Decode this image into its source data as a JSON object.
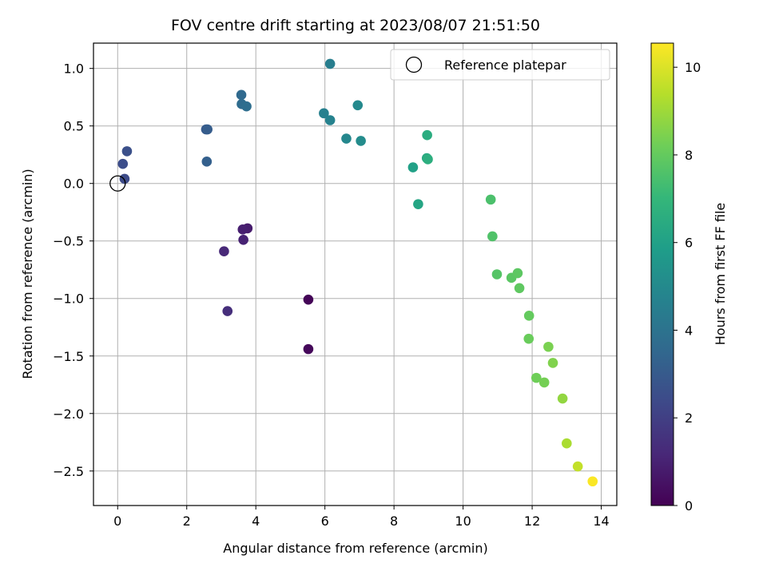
{
  "chart_data": {
    "type": "scatter",
    "title": "FOV centre drift starting at 2023/08/07 21:51:50",
    "xlabel": "Angular distance from reference (arcmin)",
    "ylabel": "Rotation from reference (arcmin)",
    "xlim": [
      -0.7,
      14.45
    ],
    "ylim": [
      -2.8,
      1.22
    ],
    "xticks": [
      0,
      2,
      4,
      6,
      8,
      10,
      12,
      14
    ],
    "xtick_labels": [
      "0",
      "2",
      "4",
      "6",
      "8",
      "10",
      "12",
      "14"
    ],
    "yticks": [
      1.0,
      0.5,
      0.0,
      -0.5,
      -1.0,
      -1.5,
      -2.0,
      -2.5
    ],
    "ytick_labels": [
      "1.0",
      "0.5",
      "0.0",
      "−0.5",
      "−1.0",
      "−1.5",
      "−2.0",
      "−2.5"
    ],
    "grid": true,
    "legend": {
      "placement": "top-right",
      "entries": [
        {
          "label": "Reference platepar",
          "marker": "open-circle"
        }
      ]
    },
    "reference_point": {
      "x": 0.0,
      "y": 0.0
    },
    "colorbar": {
      "label": "Hours from first FF file",
      "range": [
        0,
        10.55
      ],
      "ticks": [
        0,
        2,
        4,
        6,
        8,
        10
      ],
      "tick_labels": [
        "0",
        "2",
        "4",
        "6",
        "8",
        "10"
      ],
      "colormap": "viridis"
    },
    "points": [
      {
        "x": 5.52,
        "y": -1.01,
        "c": 0.1
      },
      {
        "x": 5.52,
        "y": -1.44,
        "c": 0.2
      },
      {
        "x": 3.76,
        "y": -0.39,
        "c": 0.8
      },
      {
        "x": 3.62,
        "y": -0.4,
        "c": 0.9
      },
      {
        "x": 3.64,
        "y": -0.49,
        "c": 1.0
      },
      {
        "x": 3.08,
        "y": -0.59,
        "c": 1.2
      },
      {
        "x": 3.18,
        "y": -1.11,
        "c": 1.4
      },
      {
        "x": 0.2,
        "y": 0.04,
        "c": 2.4
      },
      {
        "x": 0.15,
        "y": 0.17,
        "c": 2.5
      },
      {
        "x": 0.27,
        "y": 0.28,
        "c": 2.6
      },
      {
        "x": 2.56,
        "y": 0.47,
        "c": 3.0
      },
      {
        "x": 2.6,
        "y": 0.47,
        "c": 3.1
      },
      {
        "x": 2.58,
        "y": 0.19,
        "c": 3.2
      },
      {
        "x": 3.58,
        "y": 0.77,
        "c": 3.6
      },
      {
        "x": 3.59,
        "y": 0.69,
        "c": 3.7
      },
      {
        "x": 3.73,
        "y": 0.67,
        "c": 3.8
      },
      {
        "x": 6.15,
        "y": 1.04,
        "c": 4.5
      },
      {
        "x": 5.97,
        "y": 0.61,
        "c": 4.6
      },
      {
        "x": 6.15,
        "y": 0.55,
        "c": 4.7
      },
      {
        "x": 6.62,
        "y": 0.39,
        "c": 4.9
      },
      {
        "x": 6.95,
        "y": 0.68,
        "c": 5.0
      },
      {
        "x": 7.04,
        "y": 0.37,
        "c": 5.1
      },
      {
        "x": 8.55,
        "y": 0.14,
        "c": 6.0
      },
      {
        "x": 8.7,
        "y": -0.18,
        "c": 6.2
      },
      {
        "x": 8.95,
        "y": 0.22,
        "c": 6.4
      },
      {
        "x": 8.96,
        "y": 0.42,
        "c": 6.5
      },
      {
        "x": 8.98,
        "y": 0.21,
        "c": 6.6
      },
      {
        "x": 10.8,
        "y": -0.14,
        "c": 7.5
      },
      {
        "x": 10.85,
        "y": -0.46,
        "c": 7.6
      },
      {
        "x": 10.98,
        "y": -0.79,
        "c": 7.7
      },
      {
        "x": 11.4,
        "y": -0.82,
        "c": 7.8
      },
      {
        "x": 11.58,
        "y": -0.78,
        "c": 7.85
      },
      {
        "x": 11.63,
        "y": -0.91,
        "c": 7.9
      },
      {
        "x": 11.91,
        "y": -1.15,
        "c": 8.0
      },
      {
        "x": 11.9,
        "y": -1.35,
        "c": 8.1
      },
      {
        "x": 12.12,
        "y": -1.69,
        "c": 8.2
      },
      {
        "x": 12.35,
        "y": -1.73,
        "c": 8.3
      },
      {
        "x": 12.47,
        "y": -1.42,
        "c": 8.4
      },
      {
        "x": 12.6,
        "y": -1.56,
        "c": 8.5
      },
      {
        "x": 12.88,
        "y": -1.87,
        "c": 8.8
      },
      {
        "x": 13.0,
        "y": -2.26,
        "c": 9.2
      },
      {
        "x": 13.32,
        "y": -2.46,
        "c": 9.6
      },
      {
        "x": 13.75,
        "y": -2.59,
        "c": 10.5
      }
    ]
  }
}
